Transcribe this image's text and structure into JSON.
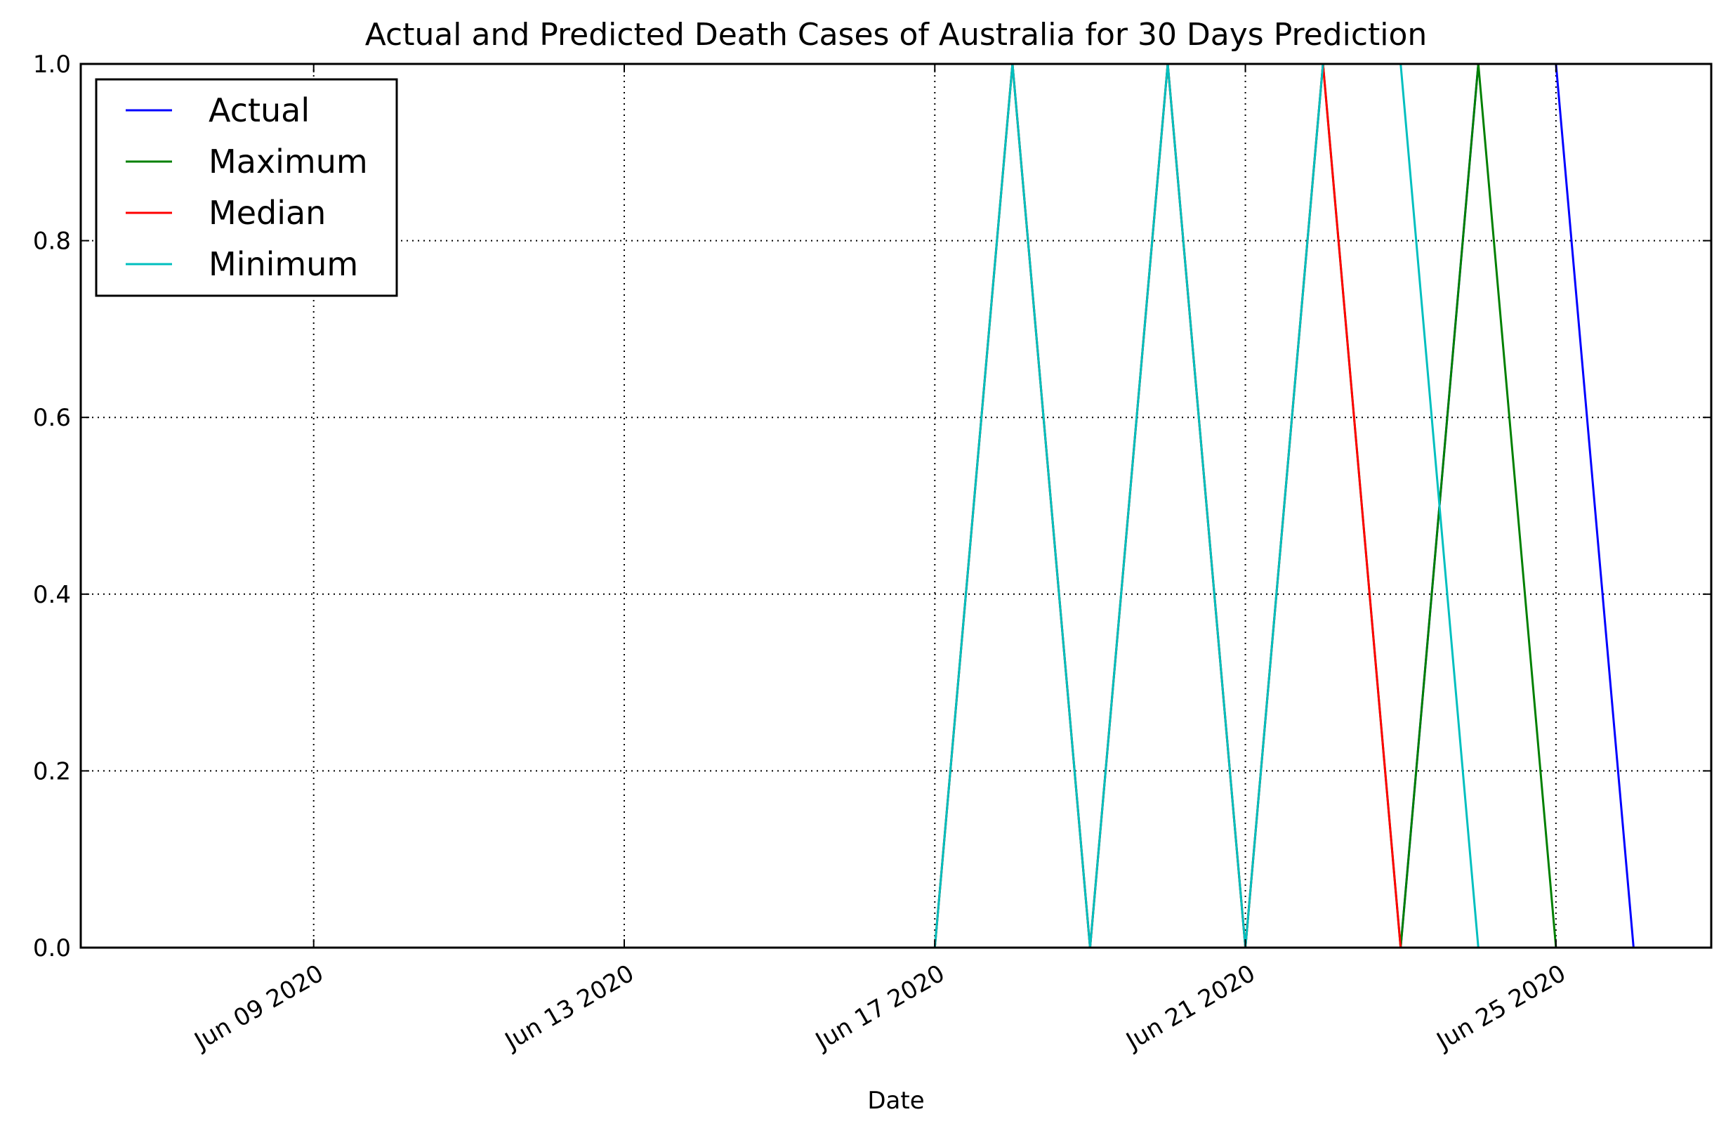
{
  "chart_data": {
    "type": "line",
    "title": "Actual and Predicted Death Cases of Australia for 30 Days Prediction",
    "xlabel": "Date",
    "ylabel": "",
    "x_type": "date",
    "xlim": [
      "2020-06-06",
      "2020-06-27"
    ],
    "ylim": [
      0,
      1
    ],
    "grid": true,
    "legend_position": "top-left",
    "x_ticks": [
      "2020-06-09",
      "2020-06-13",
      "2020-06-17",
      "2020-06-21",
      "2020-06-25"
    ],
    "x_tick_labels": [
      "Jun 09 2020",
      "Jun 13 2020",
      "Jun 17 2020",
      "Jun 21 2020",
      "Jun 25 2020"
    ],
    "y_ticks": [
      0,
      0.2,
      0.4,
      0.6,
      0.8,
      1
    ],
    "y_tick_labels": [
      "0.0",
      "0.2",
      "0.4",
      "0.6",
      "0.8",
      "1.0"
    ],
    "x": [
      "2020-06-06",
      "2020-06-07",
      "2020-06-08",
      "2020-06-09",
      "2020-06-10",
      "2020-06-11",
      "2020-06-12",
      "2020-06-13",
      "2020-06-14",
      "2020-06-15",
      "2020-06-16",
      "2020-06-17",
      "2020-06-18",
      "2020-06-19",
      "2020-06-20",
      "2020-06-21",
      "2020-06-22",
      "2020-06-23",
      "2020-06-24",
      "2020-06-25",
      "2020-06-26",
      "2020-06-27"
    ],
    "series": [
      {
        "name": "Actual",
        "color": "#0000ff",
        "values": [
          0,
          0,
          0,
          0,
          0,
          0,
          0,
          0,
          0,
          0,
          0,
          0,
          0,
          0,
          0,
          0,
          0,
          0,
          1,
          1,
          0,
          0
        ]
      },
      {
        "name": "Maximum",
        "color": "#008000",
        "values": [
          0,
          0,
          0,
          0,
          0,
          0,
          0,
          0,
          0,
          0,
          0,
          0,
          1,
          0,
          1,
          0,
          1,
          0,
          1,
          0,
          0,
          0
        ]
      },
      {
        "name": "Median",
        "color": "#ff0000",
        "values": [
          0,
          0,
          0,
          0,
          0,
          0,
          0,
          0,
          0,
          0,
          0,
          0,
          1,
          0,
          1,
          0,
          1,
          0,
          0,
          0,
          0,
          0
        ]
      },
      {
        "name": "Minimum",
        "color": "#00bfbf",
        "values": [
          0,
          0,
          0,
          0,
          0,
          0,
          0,
          0,
          0,
          0,
          0,
          0,
          1,
          0,
          1,
          0,
          1,
          1,
          0,
          0,
          0,
          0
        ]
      }
    ]
  }
}
